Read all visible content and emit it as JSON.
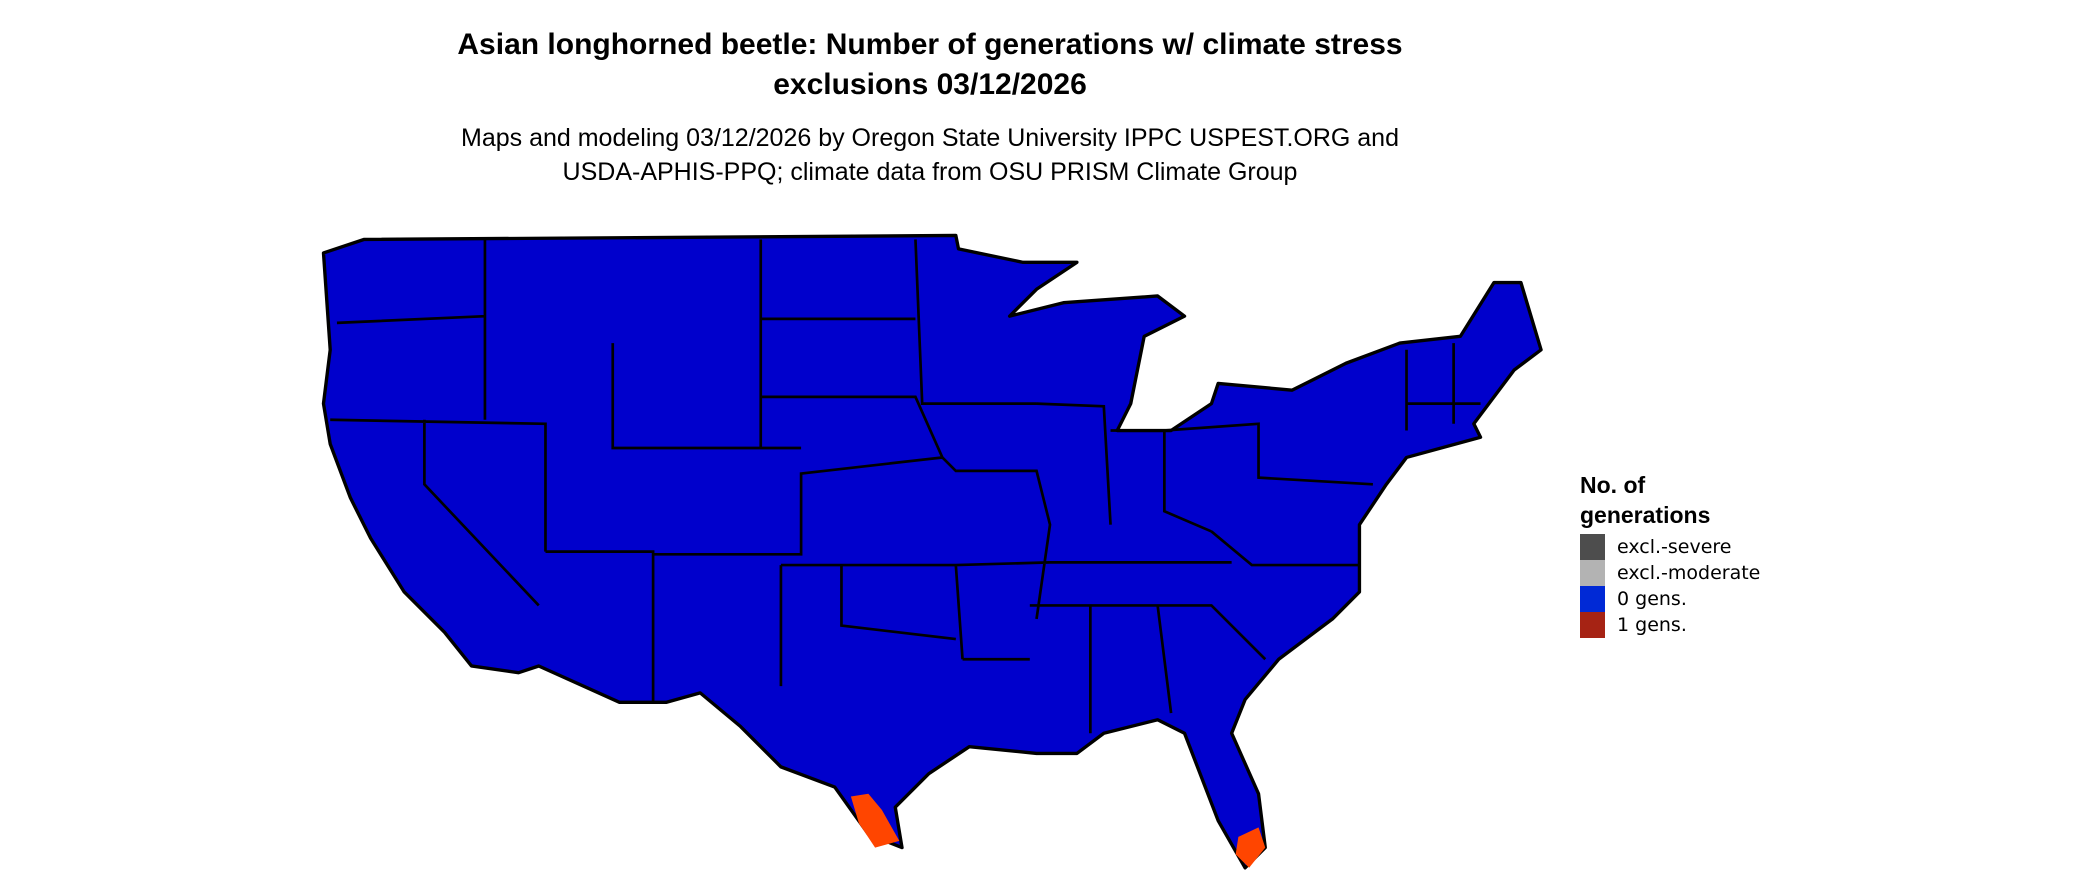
{
  "title": {
    "line1": "Asian longhorned beetle: Number of generations w/ climate stress",
    "line2": "exclusions 03/12/2026"
  },
  "subtitle": {
    "line1": "Maps and modeling 03/12/2026 by Oregon State University IPPC USPEST.ORG and",
    "line2": "USDA-APHIS-PPQ; climate data from OSU PRISM Climate Group"
  },
  "map": {
    "region": "Contiguous United States",
    "base_color": "#0000CC",
    "one_gen_color": "#FF4500",
    "border_color": "#000000"
  },
  "legend": {
    "title_line1": "No. of",
    "title_line2": "generations",
    "items": [
      {
        "label": "excl.-severe",
        "color": "#4D4D4D"
      },
      {
        "label": "excl.-moderate",
        "color": "#B3B3B3"
      },
      {
        "label": "0 gens.",
        "color": "#0029D6"
      },
      {
        "label": "1 gens.",
        "color": "#A62314"
      }
    ]
  }
}
